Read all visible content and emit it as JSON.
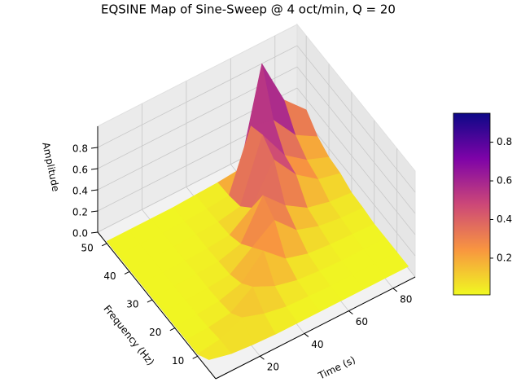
{
  "chart_data": {
    "type": "surface3d",
    "title": "EQSINE Map of Sine-Sweep @ 4 oct/min, Q = 20",
    "xlabel": "Time (s)",
    "ylabel": "Frequency (Hz)",
    "zlabel": "Amplitude",
    "x": [
      0,
      10,
      20,
      30,
      40,
      50,
      60,
      70,
      80,
      90
    ],
    "y": [
      5,
      10,
      15,
      20,
      25,
      30,
      35,
      40,
      45,
      50
    ],
    "z": [
      [
        0.1,
        0.05,
        0.03,
        0.02,
        0.02,
        0.02,
        0.02,
        0.02,
        0.02,
        0.02
      ],
      [
        0.02,
        0.05,
        0.15,
        0.08,
        0.04,
        0.03,
        0.02,
        0.02,
        0.02,
        0.02
      ],
      [
        0.02,
        0.03,
        0.06,
        0.2,
        0.1,
        0.05,
        0.03,
        0.02,
        0.02,
        0.02
      ],
      [
        0.02,
        0.02,
        0.04,
        0.1,
        0.3,
        0.12,
        0.06,
        0.04,
        0.03,
        0.02
      ],
      [
        0.02,
        0.02,
        0.03,
        0.05,
        0.2,
        0.35,
        0.15,
        0.08,
        0.05,
        0.04
      ],
      [
        0.02,
        0.02,
        0.03,
        0.04,
        0.1,
        0.45,
        0.25,
        0.12,
        0.07,
        0.05
      ],
      [
        0.02,
        0.02,
        0.02,
        0.03,
        0.05,
        0.2,
        0.55,
        0.3,
        0.15,
        0.1
      ],
      [
        0.02,
        0.02,
        0.02,
        0.03,
        0.04,
        0.08,
        0.65,
        0.35,
        0.2,
        0.12
      ],
      [
        0.02,
        0.02,
        0.02,
        0.02,
        0.03,
        0.05,
        0.6,
        0.55,
        0.3,
        0.18
      ],
      [
        0.02,
        0.02,
        0.02,
        0.02,
        0.03,
        0.04,
        0.06,
        0.95,
        0.5,
        0.3
      ]
    ],
    "xlim": [
      0,
      90
    ],
    "ylim": [
      2,
      54
    ],
    "zlim": [
      0,
      1
    ],
    "xticks": [
      20,
      40,
      60,
      80
    ],
    "yticks": [
      10,
      20,
      30,
      40,
      50
    ],
    "zticks": [
      {
        "value": 0,
        "label": "0.0"
      },
      0.2,
      0.4,
      0.6,
      0.8
    ],
    "colormap": "plasma_r",
    "clim": [
      0.01,
      0.95
    ],
    "cticks": [
      0.2,
      0.4,
      0.6,
      0.8
    ],
    "grid": true
  }
}
